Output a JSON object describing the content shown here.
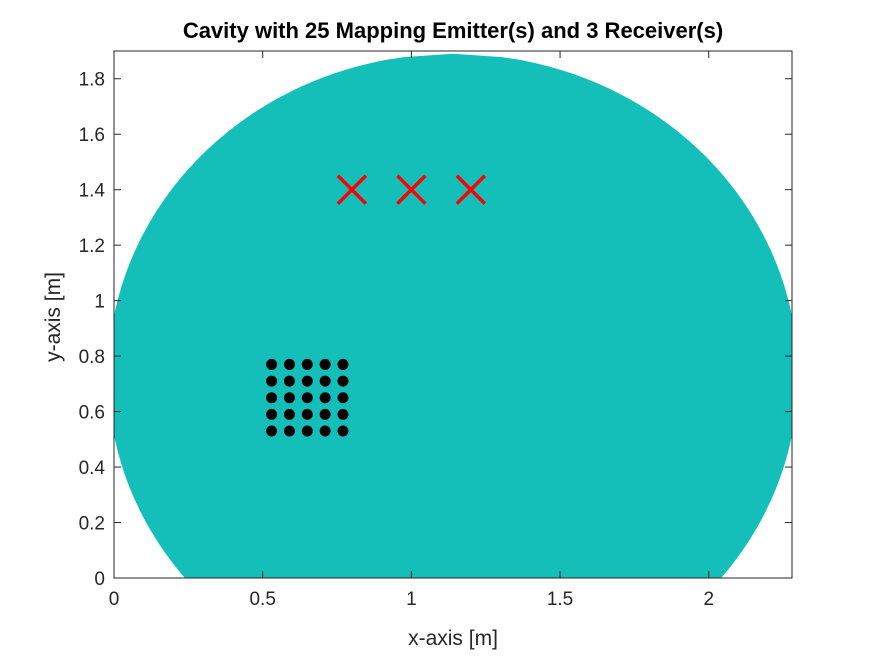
{
  "chart_data": {
    "type": "scatter",
    "title": "Cavity with 25 Mapping Emitter(s) and 3 Receiver(s)",
    "xlabel": "x-axis [m]",
    "ylabel": "y-axis [m]",
    "xlim": [
      0,
      2.28
    ],
    "ylim": [
      0,
      1.9
    ],
    "xticks": [
      0,
      0.5,
      1,
      1.5,
      2
    ],
    "xtick_labels": [
      "0",
      "0.5",
      "1",
      "1.5",
      "2"
    ],
    "yticks": [
      0,
      0.2,
      0.4,
      0.6,
      0.8,
      1,
      1.2,
      1.4,
      1.6,
      1.8
    ],
    "ytick_labels": [
      "0",
      "0.2",
      "0.4",
      "0.6",
      "0.8",
      "1",
      "1.2",
      "1.4",
      "1.6",
      "1.8"
    ],
    "grid": false,
    "cavity": {
      "shape": "truncated-disc",
      "center": [
        1.14,
        0.73
      ],
      "radius": 1.16,
      "floor_y": 0,
      "color": "#14bfb9"
    },
    "series": [
      {
        "marker": "dot",
        "color": "#000000",
        "x": [
          0.53,
          0.59,
          0.65,
          0.71,
          0.77,
          0.53,
          0.59,
          0.65,
          0.71,
          0.77,
          0.53,
          0.59,
          0.65,
          0.71,
          0.77,
          0.53,
          0.59,
          0.65,
          0.71,
          0.77,
          0.53,
          0.59,
          0.65,
          0.71,
          0.77
        ],
        "y": [
          0.53,
          0.53,
          0.53,
          0.53,
          0.53,
          0.59,
          0.59,
          0.59,
          0.59,
          0.59,
          0.65,
          0.65,
          0.65,
          0.65,
          0.65,
          0.71,
          0.71,
          0.71,
          0.71,
          0.71,
          0.77,
          0.77,
          0.77,
          0.77,
          0.77
        ]
      },
      {
        "marker": "cross",
        "color": "#ff0000",
        "x": [
          0.8,
          1.0,
          1.2
        ],
        "y": [
          1.4,
          1.4,
          1.4
        ]
      }
    ]
  }
}
